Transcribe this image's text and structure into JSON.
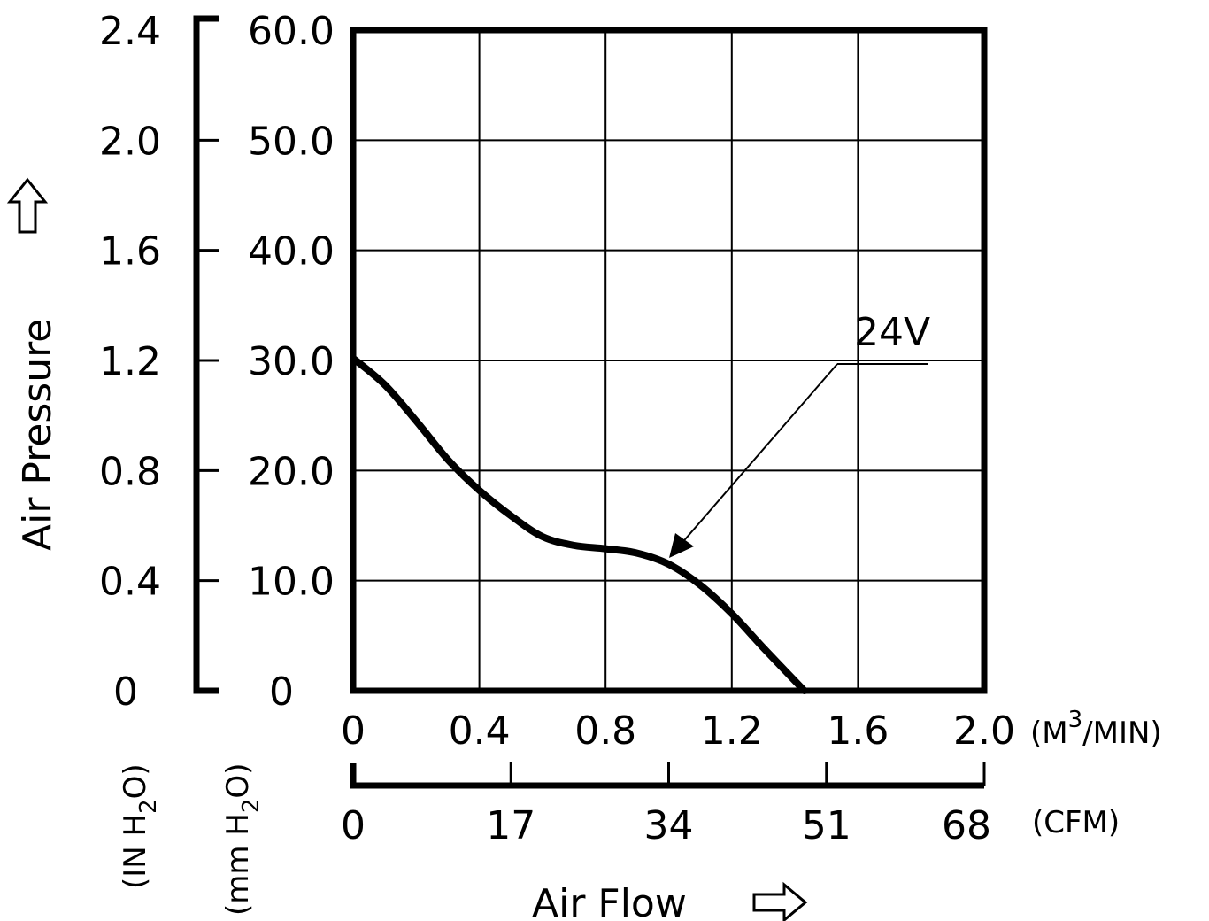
{
  "chart_data": {
    "type": "line",
    "xlabel": "Air Flow",
    "ylabel": "Air Pressure",
    "x_primary": {
      "unit_base": "(M",
      "unit_sup": "3",
      "unit_tail": "/MIN)",
      "range": [
        0,
        2.0
      ],
      "ticks": [
        "0",
        "0.4",
        "0.8",
        "1.2",
        "1.6",
        "2.0"
      ]
    },
    "x_secondary": {
      "unit": "(CFM)",
      "range": [
        0,
        68
      ],
      "ticks": [
        "0",
        "17",
        "34",
        "51",
        "68"
      ]
    },
    "y_primary": {
      "unit_pre": "(mm H",
      "unit_sub": "2",
      "unit_post": "O)",
      "range": [
        0,
        60
      ],
      "ticks": [
        "0",
        "10.0",
        "20.0",
        "30.0",
        "40.0",
        "50.0",
        "60.0"
      ]
    },
    "y_secondary": {
      "unit_pre": "(IN H",
      "unit_sub": "2",
      "unit_post": "O)",
      "range": [
        0,
        2.4
      ],
      "ticks": [
        "0",
        "0.4",
        "0.8",
        "1.2",
        "1.6",
        "2.0",
        "2.4"
      ]
    },
    "grid": true,
    "series": [
      {
        "name": "24V",
        "x": [
          0,
          0.1,
          0.2,
          0.3,
          0.4,
          0.5,
          0.6,
          0.7,
          0.8,
          0.9,
          1.0,
          1.1,
          1.2,
          1.3,
          1.43
        ],
        "y": [
          30.2,
          27.8,
          24.5,
          21.0,
          18.2,
          15.9,
          14.0,
          13.2,
          12.9,
          12.5,
          11.5,
          9.6,
          7.0,
          3.9,
          0
        ]
      }
    ]
  }
}
